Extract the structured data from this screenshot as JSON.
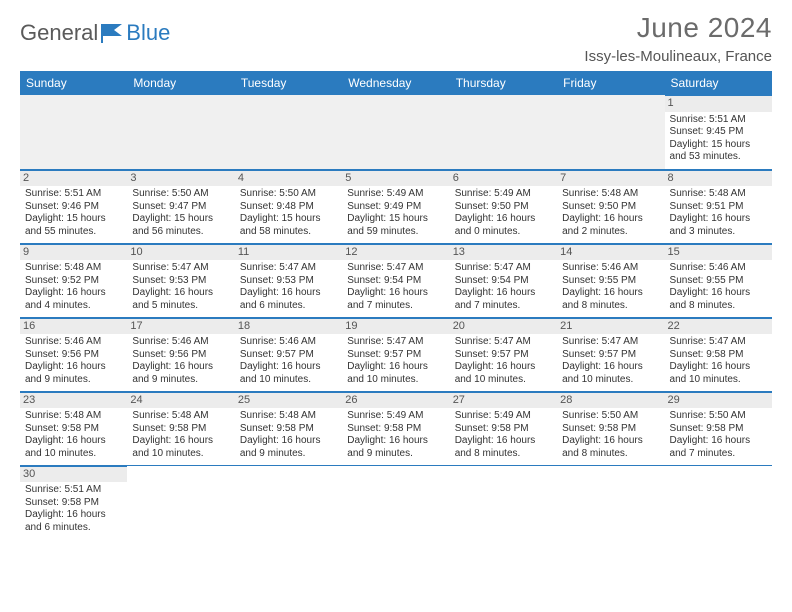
{
  "brand": {
    "word1": "General",
    "word2": "Blue"
  },
  "title": "June 2024",
  "location": "Issy-les-Moulineaux, France",
  "colors": {
    "header_bg": "#2b7bbf",
    "header_text": "#ffffff",
    "daynum_bg": "#ececec",
    "border": "#2b7bbf",
    "body_text": "#333333",
    "title_text": "#6b6b6b"
  },
  "weekdays": [
    "Sunday",
    "Monday",
    "Tuesday",
    "Wednesday",
    "Thursday",
    "Friday",
    "Saturday"
  ],
  "weeks": [
    [
      null,
      null,
      null,
      null,
      null,
      null,
      {
        "n": "1",
        "sr": "Sunrise: 5:51 AM",
        "ss": "Sunset: 9:45 PM",
        "dl1": "Daylight: 15 hours",
        "dl2": "and 53 minutes."
      }
    ],
    [
      {
        "n": "2",
        "sr": "Sunrise: 5:51 AM",
        "ss": "Sunset: 9:46 PM",
        "dl1": "Daylight: 15 hours",
        "dl2": "and 55 minutes."
      },
      {
        "n": "3",
        "sr": "Sunrise: 5:50 AM",
        "ss": "Sunset: 9:47 PM",
        "dl1": "Daylight: 15 hours",
        "dl2": "and 56 minutes."
      },
      {
        "n": "4",
        "sr": "Sunrise: 5:50 AM",
        "ss": "Sunset: 9:48 PM",
        "dl1": "Daylight: 15 hours",
        "dl2": "and 58 minutes."
      },
      {
        "n": "5",
        "sr": "Sunrise: 5:49 AM",
        "ss": "Sunset: 9:49 PM",
        "dl1": "Daylight: 15 hours",
        "dl2": "and 59 minutes."
      },
      {
        "n": "6",
        "sr": "Sunrise: 5:49 AM",
        "ss": "Sunset: 9:50 PM",
        "dl1": "Daylight: 16 hours",
        "dl2": "and 0 minutes."
      },
      {
        "n": "7",
        "sr": "Sunrise: 5:48 AM",
        "ss": "Sunset: 9:50 PM",
        "dl1": "Daylight: 16 hours",
        "dl2": "and 2 minutes."
      },
      {
        "n": "8",
        "sr": "Sunrise: 5:48 AM",
        "ss": "Sunset: 9:51 PM",
        "dl1": "Daylight: 16 hours",
        "dl2": "and 3 minutes."
      }
    ],
    [
      {
        "n": "9",
        "sr": "Sunrise: 5:48 AM",
        "ss": "Sunset: 9:52 PM",
        "dl1": "Daylight: 16 hours",
        "dl2": "and 4 minutes."
      },
      {
        "n": "10",
        "sr": "Sunrise: 5:47 AM",
        "ss": "Sunset: 9:53 PM",
        "dl1": "Daylight: 16 hours",
        "dl2": "and 5 minutes."
      },
      {
        "n": "11",
        "sr": "Sunrise: 5:47 AM",
        "ss": "Sunset: 9:53 PM",
        "dl1": "Daylight: 16 hours",
        "dl2": "and 6 minutes."
      },
      {
        "n": "12",
        "sr": "Sunrise: 5:47 AM",
        "ss": "Sunset: 9:54 PM",
        "dl1": "Daylight: 16 hours",
        "dl2": "and 7 minutes."
      },
      {
        "n": "13",
        "sr": "Sunrise: 5:47 AM",
        "ss": "Sunset: 9:54 PM",
        "dl1": "Daylight: 16 hours",
        "dl2": "and 7 minutes."
      },
      {
        "n": "14",
        "sr": "Sunrise: 5:46 AM",
        "ss": "Sunset: 9:55 PM",
        "dl1": "Daylight: 16 hours",
        "dl2": "and 8 minutes."
      },
      {
        "n": "15",
        "sr": "Sunrise: 5:46 AM",
        "ss": "Sunset: 9:55 PM",
        "dl1": "Daylight: 16 hours",
        "dl2": "and 8 minutes."
      }
    ],
    [
      {
        "n": "16",
        "sr": "Sunrise: 5:46 AM",
        "ss": "Sunset: 9:56 PM",
        "dl1": "Daylight: 16 hours",
        "dl2": "and 9 minutes."
      },
      {
        "n": "17",
        "sr": "Sunrise: 5:46 AM",
        "ss": "Sunset: 9:56 PM",
        "dl1": "Daylight: 16 hours",
        "dl2": "and 9 minutes."
      },
      {
        "n": "18",
        "sr": "Sunrise: 5:46 AM",
        "ss": "Sunset: 9:57 PM",
        "dl1": "Daylight: 16 hours",
        "dl2": "and 10 minutes."
      },
      {
        "n": "19",
        "sr": "Sunrise: 5:47 AM",
        "ss": "Sunset: 9:57 PM",
        "dl1": "Daylight: 16 hours",
        "dl2": "and 10 minutes."
      },
      {
        "n": "20",
        "sr": "Sunrise: 5:47 AM",
        "ss": "Sunset: 9:57 PM",
        "dl1": "Daylight: 16 hours",
        "dl2": "and 10 minutes."
      },
      {
        "n": "21",
        "sr": "Sunrise: 5:47 AM",
        "ss": "Sunset: 9:57 PM",
        "dl1": "Daylight: 16 hours",
        "dl2": "and 10 minutes."
      },
      {
        "n": "22",
        "sr": "Sunrise: 5:47 AM",
        "ss": "Sunset: 9:58 PM",
        "dl1": "Daylight: 16 hours",
        "dl2": "and 10 minutes."
      }
    ],
    [
      {
        "n": "23",
        "sr": "Sunrise: 5:48 AM",
        "ss": "Sunset: 9:58 PM",
        "dl1": "Daylight: 16 hours",
        "dl2": "and 10 minutes."
      },
      {
        "n": "24",
        "sr": "Sunrise: 5:48 AM",
        "ss": "Sunset: 9:58 PM",
        "dl1": "Daylight: 16 hours",
        "dl2": "and 10 minutes."
      },
      {
        "n": "25",
        "sr": "Sunrise: 5:48 AM",
        "ss": "Sunset: 9:58 PM",
        "dl1": "Daylight: 16 hours",
        "dl2": "and 9 minutes."
      },
      {
        "n": "26",
        "sr": "Sunrise: 5:49 AM",
        "ss": "Sunset: 9:58 PM",
        "dl1": "Daylight: 16 hours",
        "dl2": "and 9 minutes."
      },
      {
        "n": "27",
        "sr": "Sunrise: 5:49 AM",
        "ss": "Sunset: 9:58 PM",
        "dl1": "Daylight: 16 hours",
        "dl2": "and 8 minutes."
      },
      {
        "n": "28",
        "sr": "Sunrise: 5:50 AM",
        "ss": "Sunset: 9:58 PM",
        "dl1": "Daylight: 16 hours",
        "dl2": "and 8 minutes."
      },
      {
        "n": "29",
        "sr": "Sunrise: 5:50 AM",
        "ss": "Sunset: 9:58 PM",
        "dl1": "Daylight: 16 hours",
        "dl2": "and 7 minutes."
      }
    ],
    [
      {
        "n": "30",
        "sr": "Sunrise: 5:51 AM",
        "ss": "Sunset: 9:58 PM",
        "dl1": "Daylight: 16 hours",
        "dl2": "and 6 minutes."
      },
      null,
      null,
      null,
      null,
      null,
      null
    ]
  ]
}
